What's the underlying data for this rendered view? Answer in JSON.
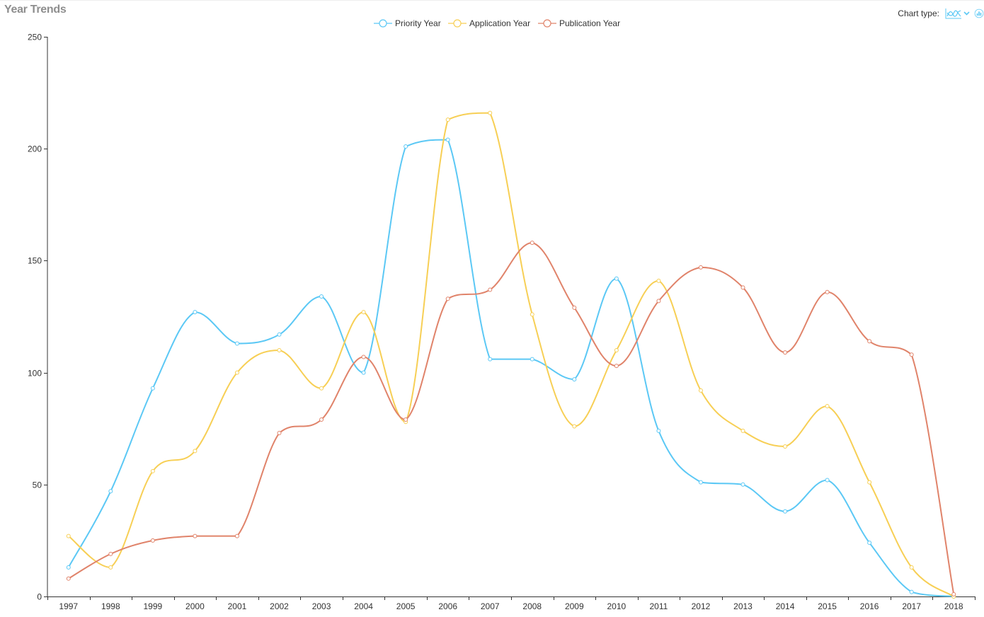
{
  "page": {
    "title": "Year Trends"
  },
  "toolbar": {
    "chart_type_label": "Chart type:",
    "line_icon": "line-chart-icon",
    "caret_icon": "chevron-down-icon",
    "alt_icon": "bar-chart-icon"
  },
  "colors": {
    "priority": "#5bc8f5",
    "application": "#f7cf55",
    "publication": "#e0836a",
    "axis": "#333333"
  },
  "chart_data": {
    "type": "line",
    "title": "",
    "xlabel": "",
    "ylabel": "",
    "x": [
      "1997",
      "1998",
      "1999",
      "2000",
      "2001",
      "2002",
      "2003",
      "2004",
      "2005",
      "2006",
      "2007",
      "2008",
      "2009",
      "2010",
      "2011",
      "2012",
      "2013",
      "2014",
      "2015",
      "2016",
      "2017",
      "2018"
    ],
    "ylim": [
      0,
      250
    ],
    "yticks": [
      0,
      50,
      100,
      150,
      200,
      250
    ],
    "legend_position": "top-center",
    "grid": false,
    "smooth": true,
    "series": [
      {
        "name": "Priority Year",
        "color": "#5bc8f5",
        "values": [
          13,
          47,
          93,
          127,
          113,
          117,
          134,
          100,
          201,
          204,
          106,
          106,
          97,
          142,
          74,
          51,
          50,
          38,
          52,
          24,
          2,
          0
        ]
      },
      {
        "name": "Application Year",
        "color": "#f7cf55",
        "values": [
          27,
          13,
          56,
          65,
          100,
          110,
          93,
          127,
          78,
          213,
          216,
          126,
          76,
          110,
          141,
          92,
          74,
          67,
          85,
          51,
          13,
          0
        ]
      },
      {
        "name": "Publication Year",
        "color": "#e0836a",
        "values": [
          8,
          19,
          25,
          27,
          27,
          73,
          79,
          107,
          79,
          133,
          137,
          158,
          129,
          103,
          132,
          147,
          138,
          109,
          136,
          114,
          108,
          1
        ]
      }
    ]
  }
}
